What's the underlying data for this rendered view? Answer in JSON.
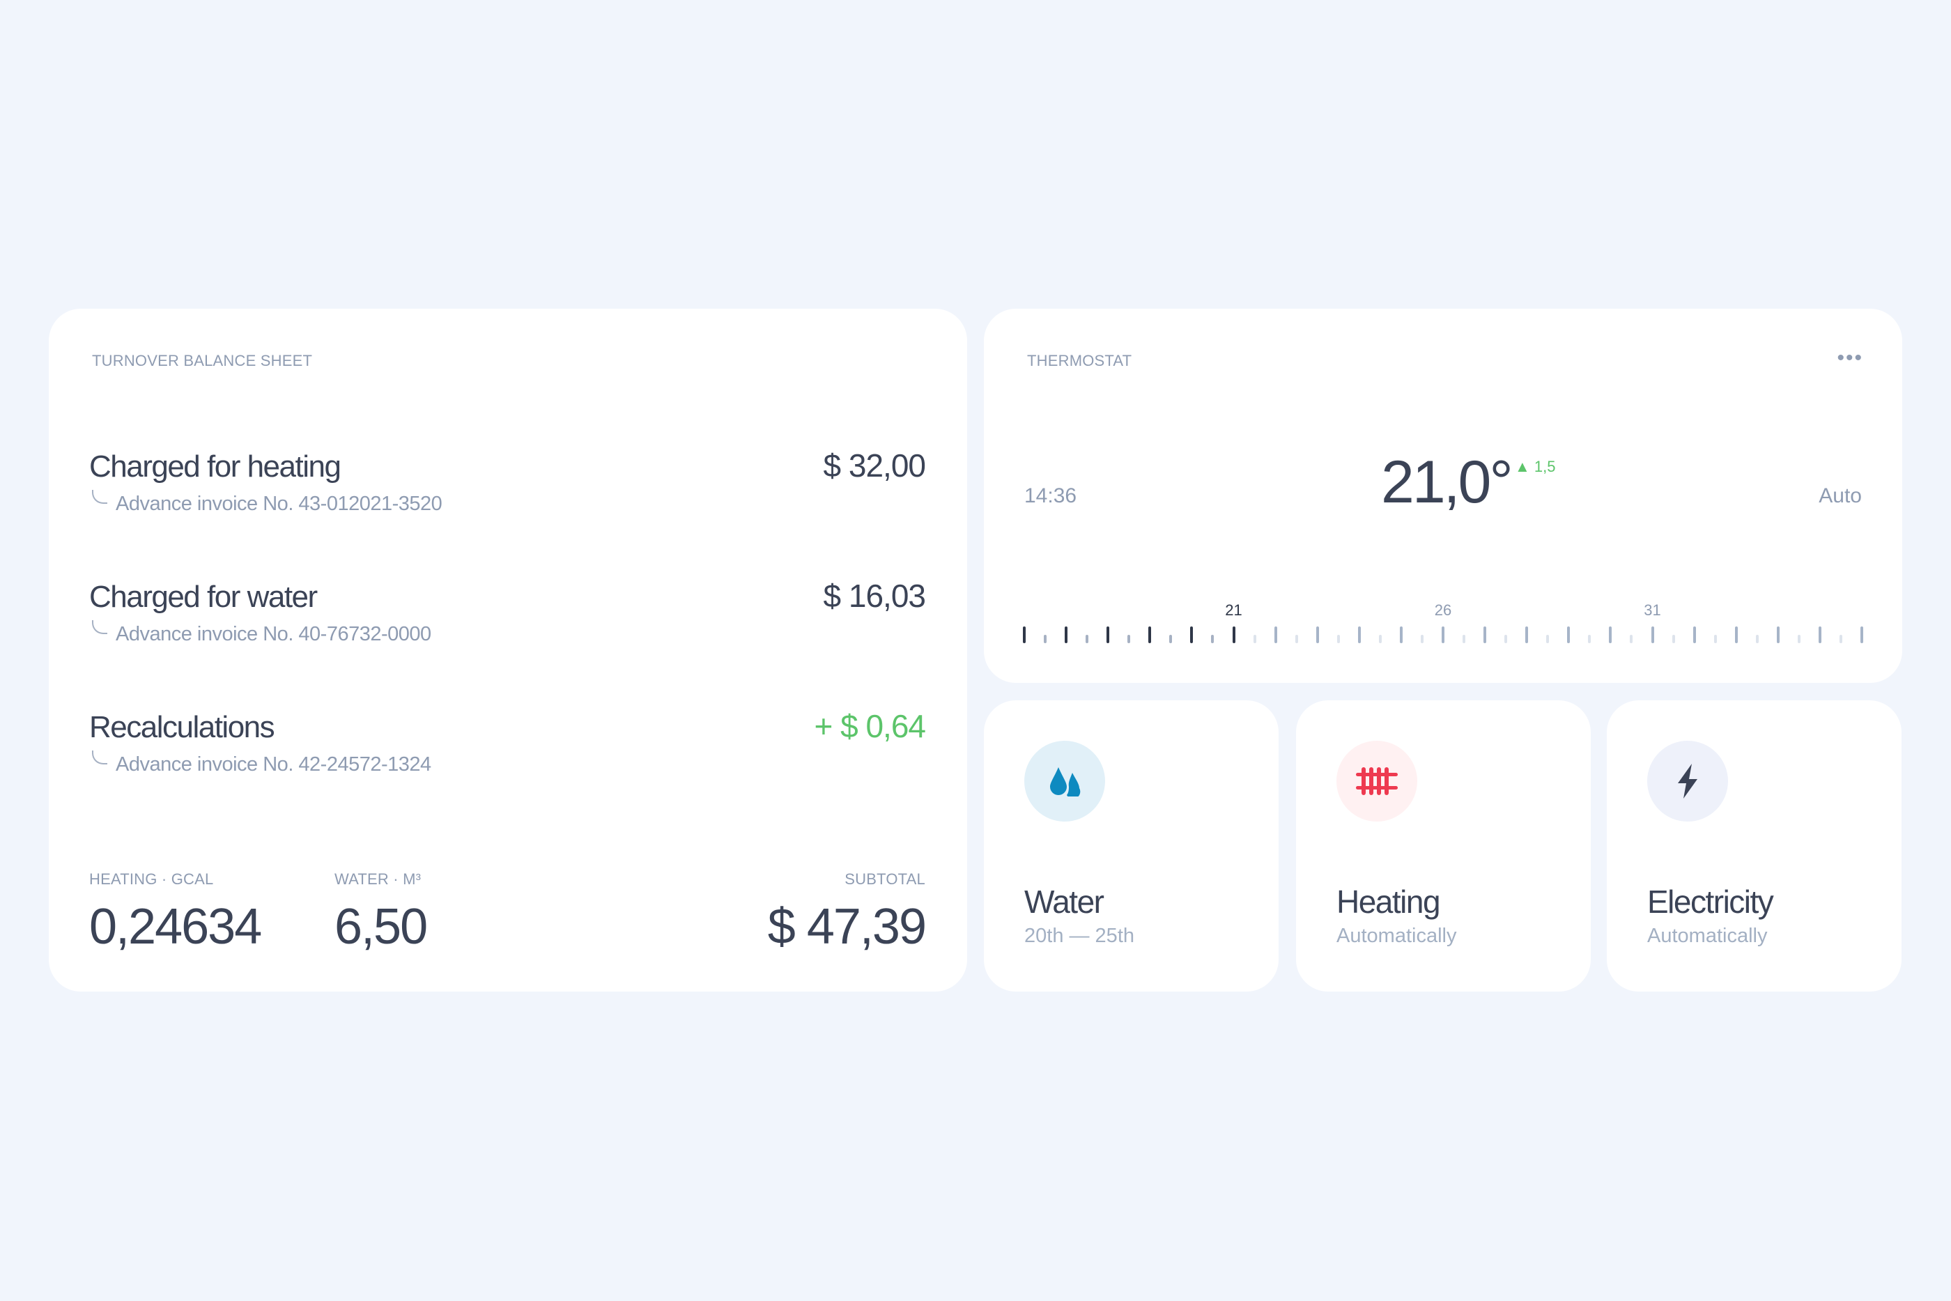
{
  "balance": {
    "title": "TURNOVER BALANCE SHEET",
    "rows": [
      {
        "title": "Charged for heating",
        "sub": "Advance invoice No. 43-012021-3520",
        "amount": "$ 32,00",
        "positive": false
      },
      {
        "title": "Charged for water",
        "sub": "Advance invoice No. 40-76732-0000",
        "amount": "$ 16,03",
        "positive": false
      },
      {
        "title": "Recalculations",
        "sub": "Advance invoice No. 42-24572-1324",
        "amount": "+ $ 0,64",
        "positive": true
      }
    ],
    "heating_label": "HEATING · GCAL",
    "heating_value": "0,24634",
    "water_label": "WATER · M³",
    "water_value": "6,50",
    "subtotal_label": "SUBTOTAL",
    "subtotal_value": "$ 47,39"
  },
  "thermostat": {
    "title": "THERMOSTAT",
    "menu_icon": "more-horizontal-icon",
    "time": "14:36",
    "temperature": "21,0°",
    "delta": "▲ 1,5",
    "mode": "Auto",
    "scale": {
      "min": 16,
      "max": 36,
      "current": 21,
      "labels": [
        21,
        26,
        31
      ]
    }
  },
  "tiles": [
    {
      "name": "Water",
      "detail": "20th — 25th",
      "icon": "water-drops-icon",
      "color": "#0e8ac0",
      "bg": "#e1f0f8"
    },
    {
      "name": "Heating",
      "detail": "Automatically",
      "icon": "radiator-icon",
      "color": "#ee3a50",
      "bg": "#fff1f2"
    },
    {
      "name": "Electricity",
      "detail": "Automatically",
      "icon": "lightning-icon",
      "color": "#3b4356",
      "bg": "#eef1fa"
    }
  ],
  "colors": {
    "positive": "#5cc46a",
    "text": "#3b4356",
    "muted": "#8e9bb1",
    "background": "#f1f5fc"
  }
}
